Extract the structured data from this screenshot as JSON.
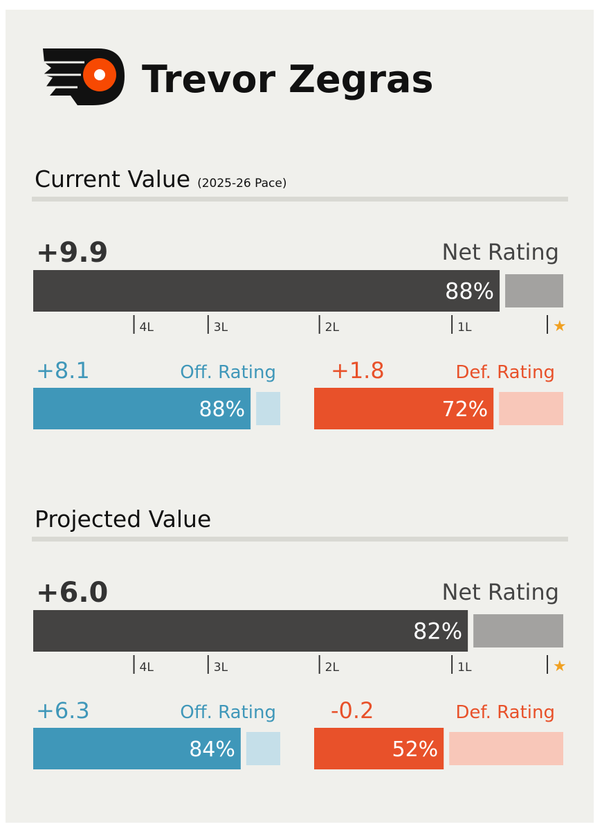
{
  "player": {
    "name": "Trevor Zegras"
  },
  "xlim": [
    0,
    100
  ],
  "tiers": [
    {
      "value": 19,
      "label": "4L"
    },
    {
      "value": 33,
      "label": "3L"
    },
    {
      "value": 54,
      "label": "2L"
    },
    {
      "value": 79,
      "label": "1L"
    },
    {
      "value": 97,
      "label": "★"
    }
  ],
  "sections": [
    {
      "title": "Current Value",
      "subtitle": "(2025-26 Pace)",
      "net": {
        "value": "+9.9",
        "label": "Net Rating",
        "pct": 88,
        "pct_label": "88%"
      },
      "off": {
        "value": "+8.1",
        "label": "Off. Rating",
        "pct": 88,
        "pct_label": "88%"
      },
      "def": {
        "value": "+1.8",
        "label": "Def. Rating",
        "pct": 72,
        "pct_label": "72%"
      }
    },
    {
      "title": "Projected Value",
      "net": {
        "value": "+6.0",
        "label": "Net Rating",
        "pct": 82,
        "pct_label": "82%"
      },
      "off": {
        "value": "+6.3",
        "label": "Off. Rating",
        "pct": 84,
        "pct_label": "84%"
      },
      "def": {
        "value": "-0.2",
        "label": "Def. Rating",
        "pct": 52,
        "pct_label": "52%"
      }
    }
  ]
}
